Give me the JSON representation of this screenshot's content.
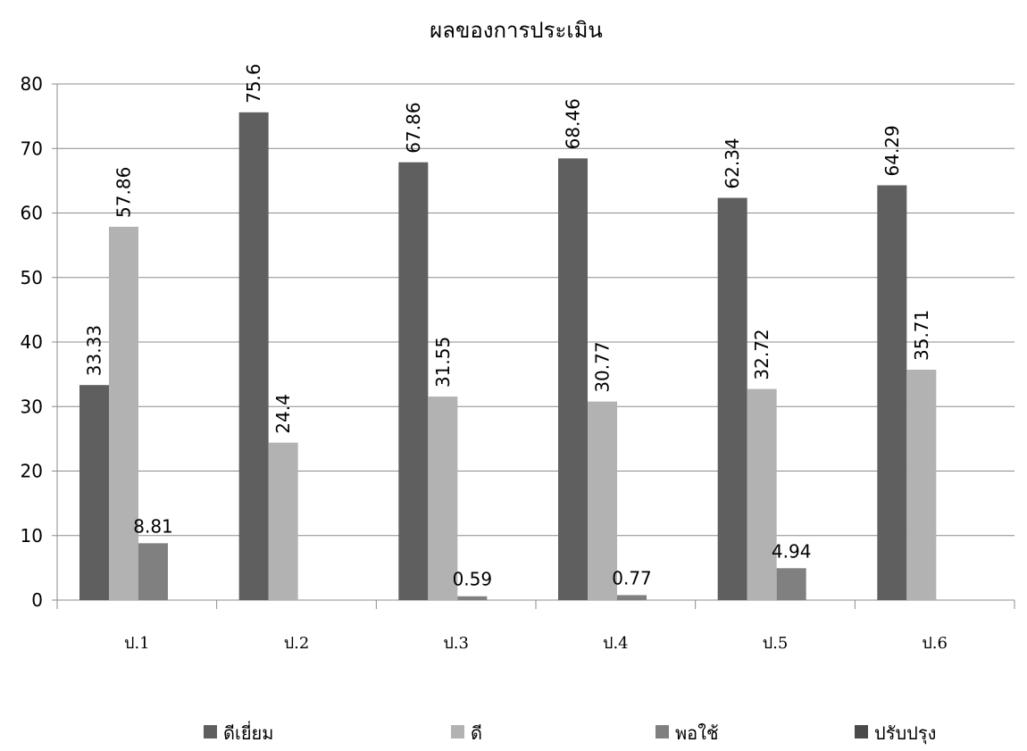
{
  "chart_data": {
    "type": "bar",
    "title": "ผลของการประเมิน",
    "xlabel": "",
    "ylabel": "",
    "categories": [
      "ป.1",
      "ป.2",
      "ป.3",
      "ป.4",
      "ป.5",
      "ป.6"
    ],
    "ylim": [
      0,
      80
    ],
    "yticks": [
      0,
      10,
      20,
      30,
      40,
      50,
      60,
      70,
      80
    ],
    "grid": true,
    "legend_position": "bottom",
    "series": [
      {
        "name": "ดีเยี่ยม",
        "color": "#5f5f5f",
        "values": [
          33.33,
          75.6,
          67.86,
          68.46,
          62.34,
          64.29
        ],
        "labels": [
          "33.33",
          "75.6",
          "67.86",
          "68.46",
          "62.34",
          "64.29"
        ]
      },
      {
        "name": "ดี",
        "color": "#b2b2b2",
        "values": [
          57.86,
          24.4,
          31.55,
          30.77,
          32.72,
          35.71
        ],
        "labels": [
          "57.86",
          "24.4",
          "31.55",
          "30.77",
          "32.72",
          "35.71"
        ]
      },
      {
        "name": "พอใช้",
        "color": "#808080",
        "values": [
          8.81,
          null,
          0.59,
          0.77,
          4.94,
          null
        ],
        "labels": [
          "8.81",
          "",
          "0.59",
          "0.77",
          "4.94",
          ""
        ]
      },
      {
        "name": "ปรับปรุง",
        "color": "#4a4a4a",
        "values": [
          null,
          null,
          null,
          null,
          null,
          null
        ],
        "labels": [
          "",
          "",
          "",
          "",
          "",
          ""
        ]
      }
    ]
  }
}
